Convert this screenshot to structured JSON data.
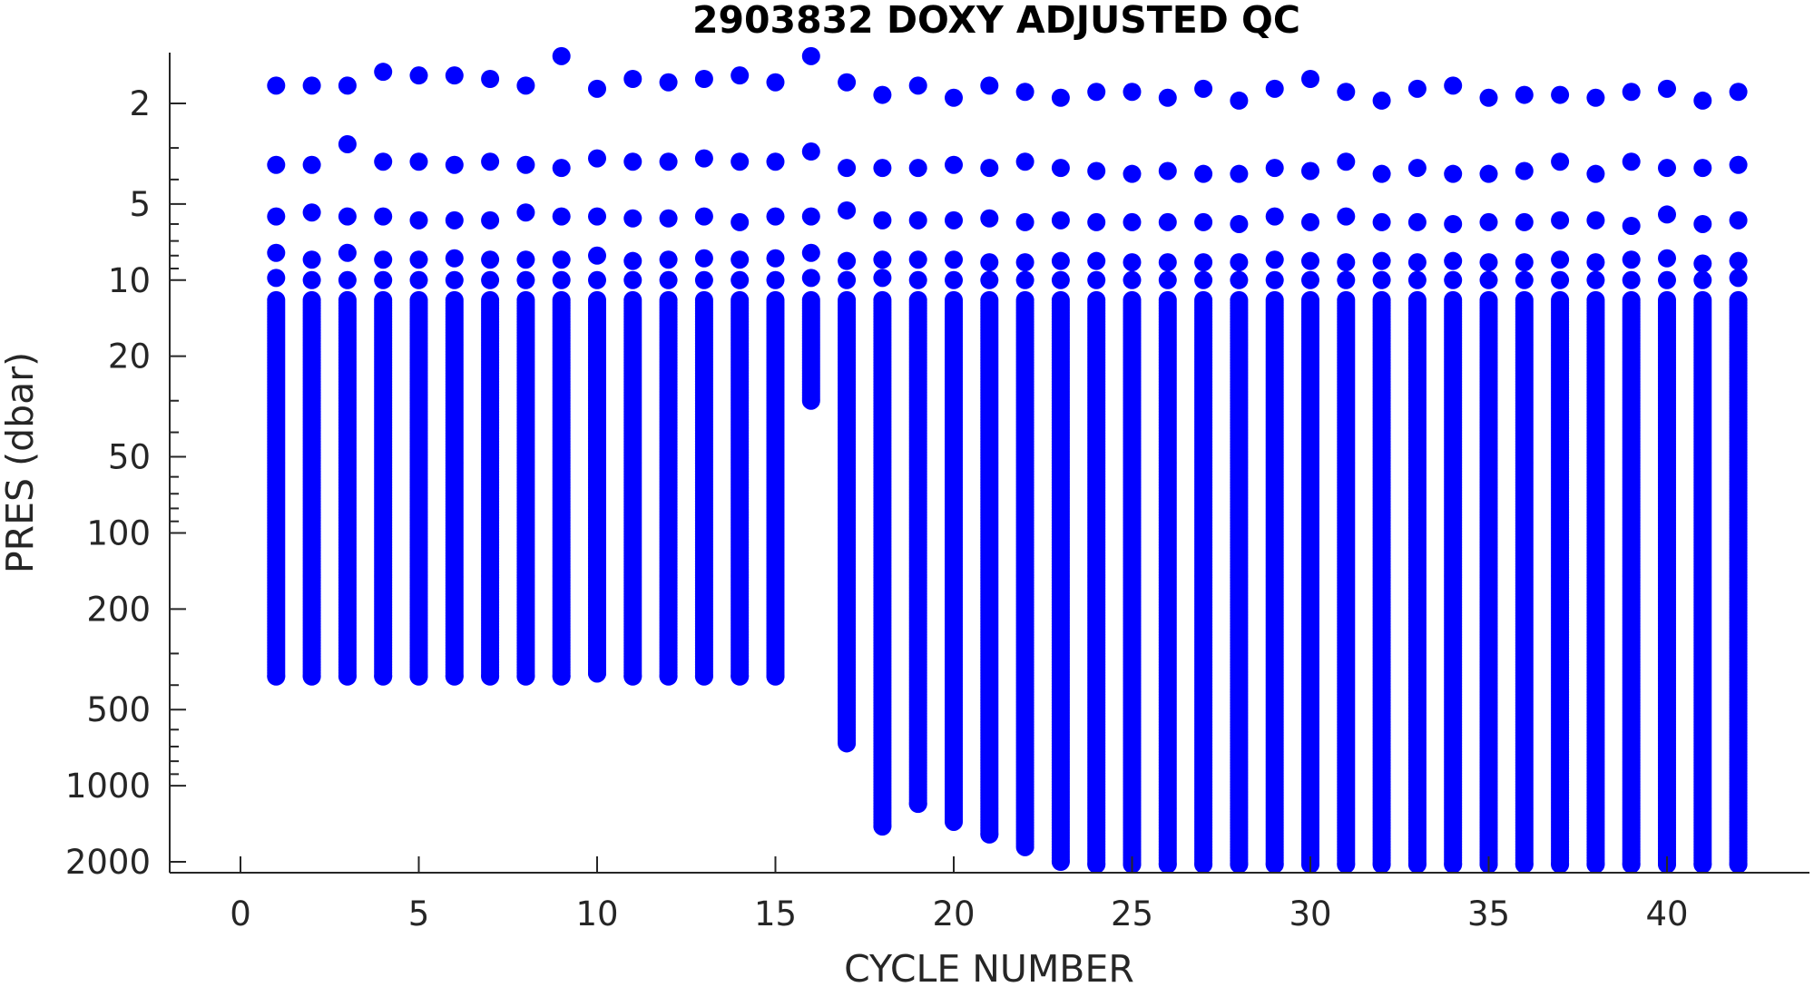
{
  "chart_data": {
    "type": "scatter",
    "title": "2903832  DOXY ADJUSTED QC",
    "xlabel": "CYCLE NUMBER",
    "ylabel": "PRES (dbar)",
    "xlim": [
      -2,
      44
    ],
    "ylim": [
      1.2,
      2100
    ],
    "y_scale": "log",
    "y_reversed": true,
    "grid": false,
    "legend": "none",
    "x_ticks": [
      0,
      5,
      10,
      15,
      20,
      25,
      30,
      35,
      40
    ],
    "x_tick_labels": [
      "0",
      "5",
      "10",
      "15",
      "20",
      "25",
      "30",
      "35",
      "40"
    ],
    "y_ticks": [
      2,
      5,
      10,
      20,
      50,
      100,
      200,
      500,
      1000,
      2000
    ],
    "y_tick_labels": [
      "2",
      "5",
      "10",
      "20",
      "50",
      "100",
      "200",
      "500",
      "1000",
      "2000"
    ],
    "marker_color": "#0000ff",
    "series": [
      {
        "cycle": [
          1,
          2,
          3,
          4,
          5,
          6,
          7,
          8,
          9,
          10,
          11,
          12,
          13,
          14,
          15,
          16,
          17,
          18,
          19,
          20,
          21,
          22,
          23,
          24,
          25,
          26,
          27,
          28,
          29,
          30,
          31,
          32,
          33,
          34,
          35,
          36,
          37,
          38,
          39,
          40,
          41,
          42
        ],
        "top_pressure": [
          1.7,
          1.7,
          1.7,
          1.5,
          1.55,
          1.55,
          1.6,
          1.7,
          1.3,
          1.75,
          1.6,
          1.65,
          1.6,
          1.55,
          1.65,
          1.3,
          1.65,
          1.85,
          1.7,
          1.9,
          1.7,
          1.8,
          1.9,
          1.8,
          1.8,
          1.9,
          1.75,
          1.95,
          1.75,
          1.6,
          1.8,
          1.95,
          1.75,
          1.7,
          1.9,
          1.85,
          1.85,
          1.9,
          1.8,
          1.75,
          1.95,
          1.8
        ],
        "upper_levels": [
          [
            3.5,
            5.6,
            7.8,
            9.8
          ],
          [
            3.5,
            5.4,
            8.3,
            10
          ],
          [
            2.9,
            5.6,
            7.8,
            10
          ],
          [
            3.4,
            5.6,
            8.3,
            10
          ],
          [
            3.4,
            5.8,
            8.3,
            10
          ],
          [
            3.5,
            5.8,
            8.2,
            10
          ],
          [
            3.4,
            5.8,
            8.3,
            10
          ],
          [
            3.5,
            5.4,
            8.3,
            10
          ],
          [
            3.6,
            5.6,
            8.3,
            10
          ],
          [
            3.3,
            5.6,
            8.0,
            10
          ],
          [
            3.4,
            5.7,
            8.4,
            10
          ],
          [
            3.4,
            5.7,
            8.3,
            10
          ],
          [
            3.3,
            5.6,
            8.2,
            10
          ],
          [
            3.4,
            5.9,
            8.3,
            10
          ],
          [
            3.4,
            5.6,
            8.2,
            10
          ],
          [
            3.1,
            5.6,
            7.8,
            9.8
          ],
          [
            3.6,
            5.3,
            8.4,
            10
          ],
          [
            3.6,
            5.8,
            8.3,
            9.8
          ],
          [
            3.6,
            5.8,
            8.3,
            10
          ],
          [
            3.5,
            5.8,
            8.3,
            10
          ],
          [
            3.6,
            5.7,
            8.5,
            10
          ],
          [
            3.4,
            5.9,
            8.5,
            10
          ],
          [
            3.6,
            5.8,
            8.4,
            10
          ],
          [
            3.7,
            5.9,
            8.4,
            10
          ],
          [
            3.8,
            5.9,
            8.5,
            10
          ],
          [
            3.7,
            5.9,
            8.5,
            10
          ],
          [
            3.8,
            5.9,
            8.5,
            10
          ],
          [
            3.8,
            6.0,
            8.5,
            10
          ],
          [
            3.6,
            5.6,
            8.3,
            10
          ],
          [
            3.7,
            5.9,
            8.4,
            10
          ],
          [
            3.4,
            5.6,
            8.5,
            10
          ],
          [
            3.8,
            5.9,
            8.4,
            10
          ],
          [
            3.6,
            5.9,
            8.5,
            10
          ],
          [
            3.8,
            6.0,
            8.4,
            10
          ],
          [
            3.8,
            5.9,
            8.5,
            10
          ],
          [
            3.7,
            5.9,
            8.5,
            10
          ],
          [
            3.4,
            5.8,
            8.3,
            10
          ],
          [
            3.8,
            5.8,
            8.5,
            10
          ],
          [
            3.4,
            6.1,
            8.3,
            10
          ],
          [
            3.6,
            5.5,
            8.2,
            10
          ],
          [
            3.6,
            6.0,
            8.6,
            10
          ],
          [
            3.5,
            5.8,
            8.4,
            9.8
          ]
        ],
        "bottom_pressure": [
          370,
          370,
          370,
          370,
          370,
          370,
          370,
          370,
          370,
          360,
          370,
          370,
          370,
          370,
          370,
          30,
          680,
          1450,
          1180,
          1390,
          1560,
          1750,
          2000,
          2050,
          2050,
          2050,
          2050,
          2050,
          2050,
          2050,
          2050,
          2050,
          2050,
          2050,
          2050,
          2050,
          2050,
          2050,
          2050,
          2050,
          2050,
          2050
        ]
      }
    ]
  }
}
